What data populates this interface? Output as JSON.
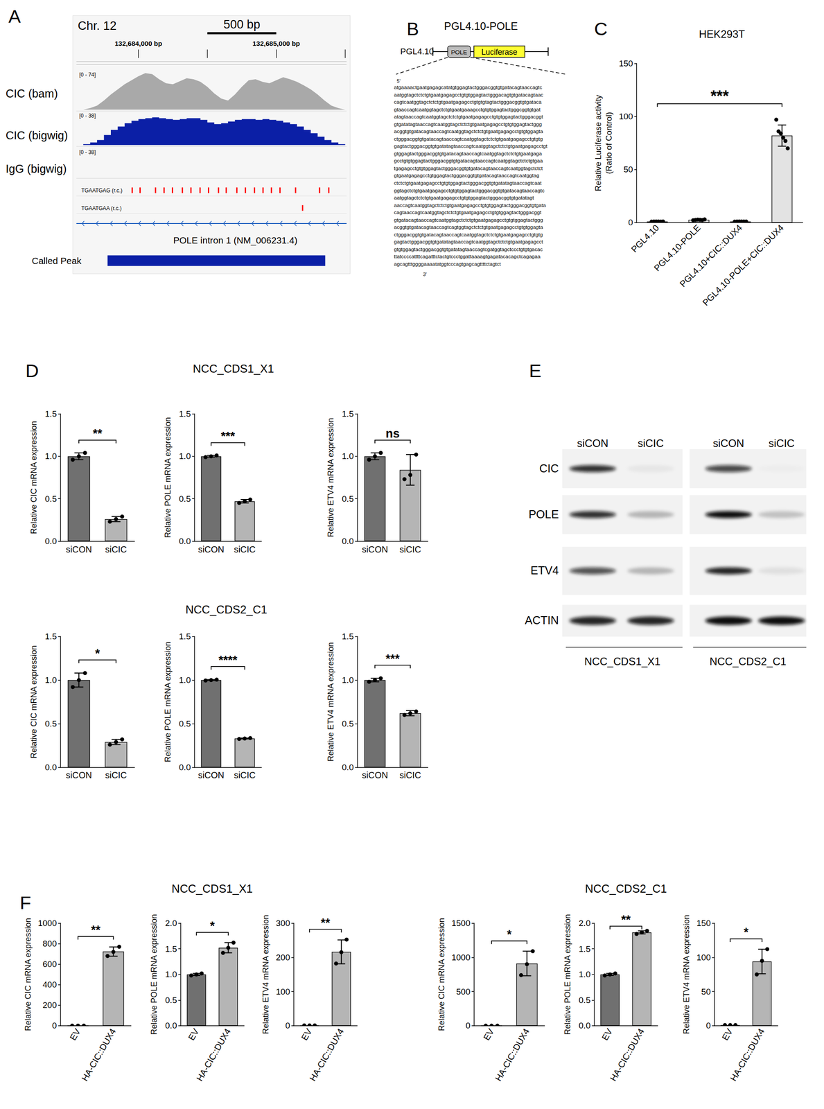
{
  "panel_labels": [
    "A",
    "B",
    "C",
    "D",
    "E",
    "F"
  ],
  "panel_A": {
    "chromosome": "Chr. 12",
    "range": [
      132683550,
      132685510
    ],
    "ticks": [
      {
        "value": 132684000,
        "label": "132,684,000 bp"
      },
      {
        "value": 132685000,
        "label": "132,685,000 bp"
      }
    ],
    "minor_ticks": [
      132684500,
      132685500
    ],
    "scale_bar": {
      "label": "500 bp",
      "from": 132684500,
      "to": 132685000
    },
    "tracks": [
      {
        "name": "CIC (bam)",
        "range_label": "[0 - 74]",
        "max": 74,
        "color": "#a9a9a9",
        "x": [
          132683550,
          132683600,
          132683650,
          132683700,
          132683750,
          132683800,
          132683850,
          132683900,
          132683950,
          132684000,
          132684050,
          132684100,
          132684150,
          132684200,
          132684250,
          132684300,
          132684350,
          132684400,
          132684450,
          132684500,
          132684550,
          132684600,
          132684650,
          132684700,
          132684750,
          132684800,
          132684850,
          132684900,
          132684950,
          132685000,
          132685050,
          132685100,
          132685150,
          132685200,
          132685250,
          132685300,
          132685350,
          132685400,
          132685450,
          132685500
        ],
        "values": [
          0,
          0,
          3,
          8,
          18,
          30,
          40,
          50,
          58,
          66,
          72,
          70,
          60,
          52,
          50,
          56,
          62,
          60,
          55,
          45,
          32,
          22,
          18,
          30,
          45,
          58,
          60,
          55,
          52,
          58,
          64,
          60,
          55,
          48,
          40,
          30,
          18,
          8,
          3,
          0
        ]
      },
      {
        "name": "CIC (bigwig)",
        "range_label": "[0 - 38]",
        "max": 38,
        "color": "#0b1fa6",
        "x": [
          132683550,
          132683600,
          132683650,
          132683700,
          132683750,
          132683800,
          132683850,
          132683900,
          132683950,
          132684000,
          132684050,
          132684100,
          132684150,
          132684200,
          132684250,
          132684300,
          132684350,
          132684400,
          132684450,
          132684500,
          132684550,
          132684600,
          132684650,
          132684700,
          132684750,
          132684800,
          132684850,
          132684900,
          132684950,
          132685000,
          132685050,
          132685100,
          132685150,
          132685200,
          132685250,
          132685300,
          132685350,
          132685400,
          132685450,
          132685500
        ],
        "values": [
          0,
          1,
          3,
          6,
          12,
          18,
          22,
          26,
          29,
          31,
          32,
          33,
          32,
          31,
          30,
          31,
          32,
          32,
          30,
          27,
          25,
          26,
          28,
          30,
          31,
          31,
          30,
          31,
          30,
          29,
          27,
          25,
          22,
          18,
          14,
          10,
          6,
          3,
          1,
          0
        ]
      },
      {
        "name": "IgG (bigwig)",
        "range_label": "[0 - 38]",
        "max": 38,
        "color": "#0b1fa6"
      }
    ],
    "motifs": [
      {
        "name": "TGAATGAG (r.c.)",
        "color": "#ff0000",
        "positions": [
          132683955,
          132684012,
          132684124,
          132684186,
          132684247,
          132684319,
          132684381,
          132684447,
          132684509,
          132684581,
          132684637,
          132684714,
          132684776,
          132684842,
          132684904,
          132684965,
          132685027,
          132685140,
          132685314,
          132685381
        ]
      },
      {
        "name": "TGAATGAA (r.c.)",
        "color": "#ff0000",
        "positions": [
          132685191
        ]
      }
    ],
    "gene": {
      "name": "POLE intron 1 (NM_006231.4)",
      "color": "#1f5fbf"
    },
    "peak": {
      "name": "Called Peak",
      "from": 132683776,
      "to": 132685355,
      "color": "#0b1fa6"
    }
  },
  "panel_B": {
    "title": "PGL4.10-POLE",
    "vector": "PGL4.10",
    "insert": "POLE",
    "reporter": "Luciferase",
    "five_prime": "5'",
    "three_prime": "3'",
    "sequence": [
      "atgaaaactgaatgagagcatatgtggagtactgggacggtgtgatacagtaaccagtc",
      "aatggtagctctctgtgaatgagagcctgtgtggagtactgggacagtgtgatacagtaac",
      "cagtcaatggtagctctctgtgaatgagagcctgtgtgtagtactgggacggtgtgataca",
      "gtaaccagtcaatggtagctctgtgaatgaaagcctgtgtggagtactgggcggtgtgat",
      "atagtaaccagtcaatggtagctctctgtgaatgagagcctgtgtggagtactgggacggt",
      "gtgatatagtaaccagtcaatggtagctctctgtgaatgagagcctgtgtggagtactggg",
      "acggtgtgatacagtaaccagtcaatggtagctctctgtgaatgagagcctgtgtggagta",
      "ctgggacggtgtgatacagtaaccagtcaatggtagctctctgtgaatgagagcctgtgtg",
      "gagtactgggacggtgtgatatagtaaccagtcaatggtagctctctgtgaatgagagcctgt",
      "gtggagtactgggacggtgtgatacagtaaccagtcaatggtagctctctgtgaatgaga",
      "gcctgtgtggagtactgggacggtgtgatacagtaaccagtcaatggtagctctctgtgaa",
      "tgagagcctgtgtggagtactgggacggtgtgatacagtaaccagtcaatggtagctctct",
      "gtgaatgagagcctgtggagtactgggacggtgtgatacagtaaccagtcaatggtag",
      "ctctctgtgaatgagagcctgtgtggagtactgggacggtgtgatatagtaaccagtcaat",
      "ggtagctctgtgaatgagagcctgtgtggagtactgggacggtgtgatacagtaaccagtc",
      "aatggtagctctctgtgaatgagagcctgtgtggagtactgggacggtgtgatatagt",
      "aaccagtcaatggtagctctctgtgaatgagagcctgtgtggagtactgggacggtgtgata",
      "cagtaaccagtcaatggtagctctctgtgaatgagagcctgtgtggagtactgggacggt",
      "gtgatacagtaaccagtcaatggtagctctctgtgaatgagagcctgtgtggagtactggg",
      "acggtgtgatacagtaaccagtcagtggtagctctctgtgaatgagagcctgtgtggagta",
      "ctgggacggtgtgatacagtaaccagtcaatggtagctctctgtgaatgagagcctgtgtg",
      "gagtactgggacggtgtgatatagtaaccagtcaatggtagctctctgtgaatgagagcct",
      "gtgtggagtactgggacggtgtgatatagtaaccagtcgatggtagctccctgtgtgacac",
      "ttatccccattttcagatttctactgtccctggattaaaagtgagatacacagctcagagaa",
      "agcagtttggggaaaatatggtcccagtgagcagttttctagtct"
    ]
  },
  "panel_E": {
    "lanes": [
      "siCON",
      "siCIC",
      "siCON",
      "siCIC"
    ],
    "groups": [
      "NCC_CDS1_X1",
      "NCC_CDS2_C1"
    ],
    "rows": [
      {
        "label": "CIC",
        "intensity": [
          0.85,
          0.05,
          0.75,
          0.02
        ]
      },
      {
        "label": "POLE",
        "intensity": [
          0.85,
          0.25,
          1.0,
          0.2
        ]
      },
      {
        "label": "ETV4",
        "intensity": [
          0.7,
          0.25,
          0.9,
          0.08
        ]
      },
      {
        "label": "ACTIN",
        "intensity": [
          0.9,
          0.9,
          1.0,
          1.0
        ]
      }
    ]
  },
  "chart_data": [
    {
      "type": "bar",
      "panel": "C",
      "title": "HEK293T",
      "categories": [
        "PGL4.10",
        "PGL4.10-POLE",
        "PGL4.10+CIC::DUX4",
        "PGL4.10-POLE+CIC::DUX4"
      ],
      "values": [
        1,
        2.6,
        1,
        82
      ],
      "errors": [
        0.1,
        0.4,
        0.1,
        10
      ],
      "points": [
        [
          0.9,
          1,
          1.1,
          1,
          0.95,
          1.05
        ],
        [
          2.2,
          2.5,
          2.8,
          2.6,
          2.4,
          3
        ],
        [
          0.9,
          1,
          1.1,
          1,
          1,
          1
        ],
        [
          97,
          86,
          84,
          80,
          77,
          70
        ]
      ],
      "colors": [
        "#e3e3e3",
        "#e3e3e3",
        "#e3e3e3",
        "#e3e3e3"
      ],
      "ylim": [
        0,
        150
      ],
      "yticks": [
        0,
        50,
        100,
        150
      ],
      "y_label": "Relative Luciferase activity\n(Ratio of Control)",
      "grid": false,
      "annotations": [
        {
          "text": "***",
          "between": [
            "PGL4.10",
            "PGL4.10-POLE+CIC::DUX4"
          ]
        }
      ]
    },
    {
      "type": "bar",
      "panel": "D",
      "group": "NCC_CDS1_X1",
      "categories": [
        "siCON",
        "siCIC"
      ],
      "values": [
        1.0,
        0.26
      ],
      "errors": [
        0.04,
        0.03
      ],
      "points": [
        [
          0.96,
          1.0,
          1.04
        ],
        [
          0.23,
          0.26,
          0.29
        ]
      ],
      "colors": [
        "#707070",
        "#b5b5b5"
      ],
      "ylim": [
        0,
        1.5
      ],
      "yticks": [
        {
          "value": 0,
          "label": "0.0"
        },
        0.5,
        {
          "value": 1,
          "label": "1.0"
        },
        1.5
      ],
      "y_label": "Relative CIC mRNA expression",
      "grid": false,
      "annotations": [
        {
          "text": "**",
          "between": [
            "siCON",
            "siCIC"
          ]
        }
      ]
    },
    {
      "type": "bar",
      "panel": "D",
      "group": "NCC_CDS1_X1",
      "categories": [
        "siCON",
        "siCIC"
      ],
      "values": [
        1.0,
        0.47
      ],
      "errors": [
        0.01,
        0.02
      ],
      "points": [
        [
          0.99,
          1.0,
          1.01
        ],
        [
          0.45,
          0.47,
          0.49
        ]
      ],
      "colors": [
        "#707070",
        "#b5b5b5"
      ],
      "ylim": [
        0,
        1.5
      ],
      "yticks": [
        {
          "value": 0,
          "label": "0.0"
        },
        0.5,
        {
          "value": 1,
          "label": "1.0"
        },
        1.5
      ],
      "y_label": "Relative POLE mRNA expression",
      "grid": false,
      "annotations": [
        {
          "text": "***",
          "between": [
            "siCON",
            "siCIC"
          ]
        }
      ]
    },
    {
      "type": "bar",
      "panel": "D",
      "group": "NCC_CDS1_X1",
      "categories": [
        "siCON",
        "siCIC"
      ],
      "values": [
        1.0,
        0.84
      ],
      "errors": [
        0.04,
        0.18
      ],
      "points": [
        [
          0.96,
          1.0,
          1.04
        ],
        [
          0.73,
          0.78,
          1.02
        ]
      ],
      "colors": [
        "#707070",
        "#b5b5b5"
      ],
      "ylim": [
        0,
        1.5
      ],
      "yticks": [
        {
          "value": 0,
          "label": "0.0"
        },
        0.5,
        {
          "value": 1,
          "label": "1.0"
        },
        1.5
      ],
      "y_label": "Relative ETV4 mRNA expression",
      "grid": false,
      "annotations": [
        {
          "text": "ns",
          "between": [
            "siCON",
            "siCIC"
          ]
        }
      ]
    },
    {
      "type": "bar",
      "panel": "D",
      "group": "NCC_CDS2_C1",
      "categories": [
        "siCON",
        "siCIC"
      ],
      "values": [
        1.0,
        0.29
      ],
      "errors": [
        0.08,
        0.03
      ],
      "points": [
        [
          0.92,
          1.0,
          1.08
        ],
        [
          0.26,
          0.29,
          0.32
        ]
      ],
      "colors": [
        "#707070",
        "#b5b5b5"
      ],
      "ylim": [
        0,
        1.5
      ],
      "yticks": [
        {
          "value": 0,
          "label": "0.0"
        },
        0.5,
        {
          "value": 1,
          "label": "1.0"
        },
        1.5
      ],
      "y_label": "Relative CIC mRNA expression",
      "grid": false,
      "annotations": [
        {
          "text": "*",
          "between": [
            "siCON",
            "siCIC"
          ]
        }
      ]
    },
    {
      "type": "bar",
      "panel": "D",
      "group": "NCC_CDS2_C1",
      "categories": [
        "siCON",
        "siCIC"
      ],
      "values": [
        1.0,
        0.33
      ],
      "errors": [
        0.005,
        0.005
      ],
      "points": [
        [
          0.995,
          1.0,
          1.005
        ],
        [
          0.325,
          0.33,
          0.335
        ]
      ],
      "colors": [
        "#707070",
        "#b5b5b5"
      ],
      "ylim": [
        0,
        1.5
      ],
      "yticks": [
        {
          "value": 0,
          "label": "0.0"
        },
        0.5,
        {
          "value": 1,
          "label": "1.0"
        },
        1.5
      ],
      "y_label": "Relative POLE mRNA expression",
      "grid": false,
      "annotations": [
        {
          "text": "****",
          "between": [
            "siCON",
            "siCIC"
          ]
        }
      ]
    },
    {
      "type": "bar",
      "panel": "D",
      "group": "NCC_CDS2_C1",
      "categories": [
        "siCON",
        "siCIC"
      ],
      "values": [
        1.0,
        0.62
      ],
      "errors": [
        0.02,
        0.03
      ],
      "points": [
        [
          0.98,
          1.0,
          1.02
        ],
        [
          0.6,
          0.62,
          0.64
        ]
      ],
      "colors": [
        "#707070",
        "#b5b5b5"
      ],
      "ylim": [
        0,
        1.5
      ],
      "yticks": [
        {
          "value": 0,
          "label": "0.0"
        },
        0.5,
        {
          "value": 1,
          "label": "1.0"
        },
        1.5
      ],
      "y_label": "Relative ETV4 mRNA expression",
      "grid": false,
      "annotations": [
        {
          "text": "***",
          "between": [
            "siCON",
            "siCIC"
          ]
        }
      ]
    },
    {
      "type": "bar",
      "panel": "F",
      "group": "NCC_CDS1_X1",
      "categories": [
        "EV",
        "HA-CIC::DUX4"
      ],
      "values": [
        1,
        723
      ],
      "errors": [
        0,
        45
      ],
      "points": [
        [
          1,
          1,
          1
        ],
        [
          680,
          720,
          770
        ]
      ],
      "colors": [
        "#707070",
        "#b5b5b5"
      ],
      "ylim": [
        0,
        1000
      ],
      "yticks": [
        0,
        200,
        400,
        600,
        800,
        1000
      ],
      "y_label": "Relative CIC mRNA expression",
      "grid": false,
      "annotations": [
        {
          "text": "**",
          "between": [
            "EV",
            "HA-CIC::DUX4"
          ]
        }
      ]
    },
    {
      "type": "bar",
      "panel": "F",
      "group": "NCC_CDS1_X1",
      "categories": [
        "EV",
        "HA-CIC::DUX4"
      ],
      "values": [
        1.0,
        1.52
      ],
      "errors": [
        0.02,
        0.1
      ],
      "points": [
        [
          0.98,
          1.0,
          1.02
        ],
        [
          1.42,
          1.52,
          1.62
        ]
      ],
      "colors": [
        "#707070",
        "#b5b5b5"
      ],
      "ylim": [
        0,
        2
      ],
      "yticks": [
        {
          "value": 0,
          "label": "0.0"
        },
        0.5,
        {
          "value": 1,
          "label": "1.0"
        },
        1.5,
        {
          "value": 2,
          "label": "2.0"
        }
      ],
      "y_label": "Relative POLE mRNA expression",
      "grid": false,
      "annotations": [
        {
          "text": "*",
          "between": [
            "EV",
            "HA-CIC::DUX4"
          ]
        }
      ]
    },
    {
      "type": "bar",
      "panel": "F",
      "group": "NCC_CDS1_X1",
      "categories": [
        "EV",
        "HA-CIC::DUX4"
      ],
      "values": [
        1,
        216
      ],
      "errors": [
        0,
        35
      ],
      "points": [
        [
          1,
          1,
          1
        ],
        [
          182,
          215,
          252
        ]
      ],
      "colors": [
        "#707070",
        "#b5b5b5"
      ],
      "ylim": [
        0,
        300
      ],
      "yticks": [
        0,
        100,
        200,
        300
      ],
      "y_label": "Relative ETV4 mRNA expression",
      "grid": false,
      "annotations": [
        {
          "text": "**",
          "between": [
            "EV",
            "HA-CIC::DUX4"
          ]
        }
      ]
    },
    {
      "type": "bar",
      "panel": "F",
      "group": "NCC_CDS2_C1",
      "categories": [
        "EV",
        "HA-CIC::DUX4"
      ],
      "values": [
        1,
        910
      ],
      "errors": [
        0,
        180
      ],
      "points": [
        [
          1,
          1,
          1
        ],
        [
          740,
          900,
          1090
        ]
      ],
      "colors": [
        "#707070",
        "#b5b5b5"
      ],
      "ylim": [
        0,
        1500
      ],
      "yticks": [
        0,
        500,
        1000,
        1500
      ],
      "y_label": "Relative CIC mRNA expression",
      "grid": false,
      "annotations": [
        {
          "text": "*",
          "between": [
            "EV",
            "HA-CIC::DUX4"
          ]
        }
      ]
    },
    {
      "type": "bar",
      "panel": "F",
      "group": "NCC_CDS2_C1",
      "categories": [
        "EV",
        "HA-CIC::DUX4"
      ],
      "values": [
        1.0,
        1.82
      ],
      "errors": [
        0.02,
        0.03
      ],
      "points": [
        [
          0.98,
          1.0,
          1.02
        ],
        [
          1.79,
          1.82,
          1.85
        ]
      ],
      "colors": [
        "#707070",
        "#b5b5b5"
      ],
      "ylim": [
        0,
        2
      ],
      "yticks": [
        {
          "value": 0,
          "label": "0.0"
        },
        0.5,
        {
          "value": 1,
          "label": "1.0"
        },
        1.5,
        {
          "value": 2,
          "label": "2.0"
        }
      ],
      "y_label": "Relative POLE mRNA expression",
      "grid": false,
      "annotations": [
        {
          "text": "**",
          "between": [
            "EV",
            "HA-CIC::DUX4"
          ]
        }
      ]
    },
    {
      "type": "bar",
      "panel": "F",
      "group": "NCC_CDS2_C1",
      "categories": [
        "EV",
        "HA-CIC::DUX4"
      ],
      "values": [
        1,
        94
      ],
      "errors": [
        0,
        18
      ],
      "points": [
        [
          1,
          1,
          1
        ],
        [
          75,
          95,
          112
        ]
      ],
      "colors": [
        "#707070",
        "#b5b5b5"
      ],
      "ylim": [
        0,
        150
      ],
      "yticks": [
        0,
        50,
        100,
        150
      ],
      "y_label": "Relative ETV4 mRNA expression",
      "grid": false,
      "annotations": [
        {
          "text": "*",
          "between": [
            "EV",
            "HA-CIC::DUX4"
          ]
        }
      ]
    }
  ]
}
